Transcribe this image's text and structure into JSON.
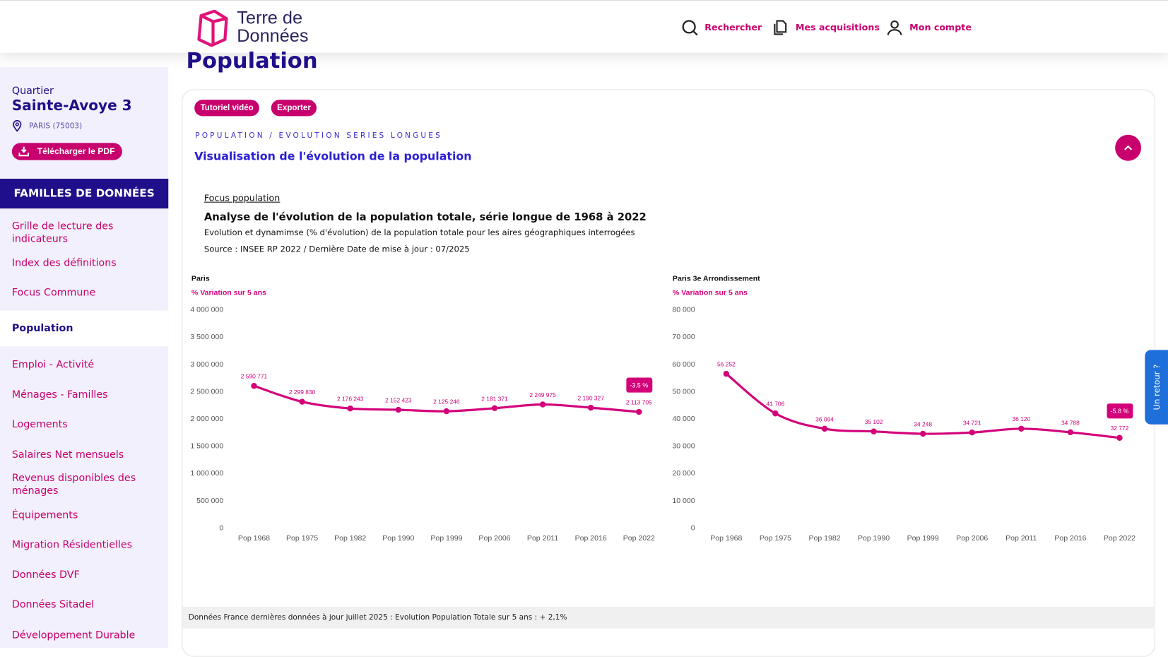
{
  "header": {
    "logo_line1": "Terre de",
    "logo_line2": "Données",
    "search": "Rechercher",
    "acquisitions": "Mes acquisitions",
    "account": "Mon compte"
  },
  "page_title": "Population",
  "sidebar": {
    "kind": "Quartier",
    "name": "Sainte-Avoye 3",
    "location": "PARIS (75003)",
    "pdf_button": "Télécharger le PDF",
    "families_heading": "FAMILLES DE DONNÉES",
    "items": [
      {
        "label": "Grille de lecture des indicateurs"
      },
      {
        "label": "Index des définitions"
      },
      {
        "label": "Focus Commune"
      },
      {
        "label": "Population",
        "active": true
      },
      {
        "label": "Emploi - Activité"
      },
      {
        "label": "Ménages - Familles"
      },
      {
        "label": "Logements"
      },
      {
        "label": "Salaires Net mensuels"
      },
      {
        "label": "Revenus disponibles des ménages"
      },
      {
        "label": "Équipements"
      },
      {
        "label": "Migration Résidentielles"
      },
      {
        "label": "Données DVF"
      },
      {
        "label": "Données Sitadel"
      },
      {
        "label": "Développement Durable"
      }
    ]
  },
  "card": {
    "tutorial_button": "Tutoriel vidéo",
    "export_button": "Exporter",
    "breadcrumb": "POPULATION / EVOLUTION SERIES LONGUES",
    "section_title": "Visualisation de l'évolution de la population",
    "focus_link": "Focus population",
    "analysis_title": "Analyse de l'évolution de la population totale, série longue de 1968 à 2022",
    "description": "Evolution et dynamimse (% d'évolution) de la population totale pour les aires géographiques interrogées",
    "source": "Source : INSEE RP 2022 / Dernière Date de mise à jour : 07/2025",
    "footer": "Données France dernières données à jour juillet 2025 : Evolution Population Totale sur 5 ans : + 2,1%"
  },
  "feedback": "Un retour ?",
  "colors": {
    "accent": "#c8006e",
    "navy": "#1f0f8a",
    "sidebar_bg": "#f2f0fc"
  },
  "chart_data": [
    {
      "type": "line",
      "title": "Paris",
      "subtitle": "% Variation sur 5 ans",
      "categories": [
        "Pop 1968",
        "Pop 1975",
        "Pop 1982",
        "Pop 1990",
        "Pop 1999",
        "Pop 2006",
        "Pop 2011",
        "Pop 2016",
        "Pop 2022"
      ],
      "values": [
        2590771,
        2299830,
        2176243,
        2152423,
        2125246,
        2181371,
        2249975,
        2190327,
        2113705
      ],
      "value_labels": [
        "2 590 771",
        "2 299 830",
        "2 176 243",
        "2 152 423",
        "2 125 246",
        "2 181 371",
        "2 249 975",
        "2 190 327",
        "2 113 705"
      ],
      "yticks": [
        "0",
        "500 000",
        "1 000 000",
        "1 500 000",
        "2 000 000",
        "2 500 000",
        "3 000 000",
        "3 500 000",
        "4 000 000"
      ],
      "ylim": [
        0,
        4000000
      ],
      "badge": "-3.5 %",
      "grid": false
    },
    {
      "type": "line",
      "title": "Paris 3e Arrondissement",
      "subtitle": "% Variation sur 5 ans",
      "categories": [
        "Pop 1968",
        "Pop 1975",
        "Pop 1982",
        "Pop 1990",
        "Pop 1999",
        "Pop 2006",
        "Pop 2011",
        "Pop 2016",
        "Pop 2022"
      ],
      "values": [
        56252,
        41706,
        36094,
        35102,
        34248,
        34721,
        36120,
        34788,
        32772
      ],
      "value_labels": [
        "56 252",
        "41 706",
        "36 094",
        "35 102",
        "34 248",
        "34 721",
        "36 120",
        "34 788",
        "32 772"
      ],
      "yticks": [
        "0",
        "10 000",
        "20 000",
        "30 000",
        "40 000",
        "50 000",
        "60 000",
        "70 000",
        "80 000"
      ],
      "ylim": [
        0,
        80000
      ],
      "badge": "-5.8 %",
      "grid": false
    }
  ]
}
